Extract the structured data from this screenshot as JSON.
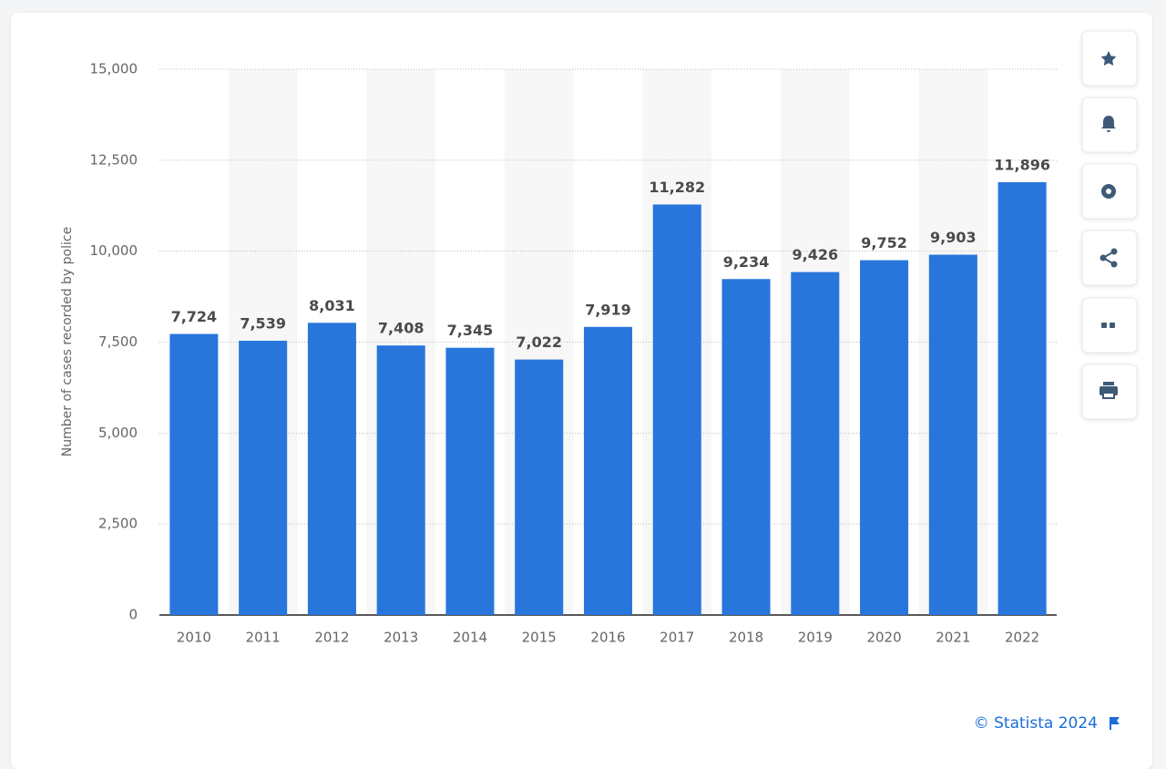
{
  "chart_data": {
    "type": "bar",
    "y_label": "Number of cases recorded by police",
    "categories": [
      "2010",
      "2011",
      "2012",
      "2013",
      "2014",
      "2015",
      "2016",
      "2017",
      "2018",
      "2019",
      "2020",
      "2021",
      "2022"
    ],
    "values": [
      7724,
      7539,
      8031,
      7408,
      7345,
      7022,
      7919,
      11282,
      9234,
      9426,
      9752,
      9903,
      11896
    ],
    "value_labels": [
      "7,724",
      "7,539",
      "8,031",
      "7,408",
      "7,345",
      "7,022",
      "7,919",
      "11,282",
      "9,234",
      "9,426",
      "9,752",
      "9,903",
      "11,896"
    ],
    "color": "#2876dc",
    "ylim": [
      0,
      15000
    ],
    "yticks": [
      {
        "value": 0,
        "label": "0"
      },
      {
        "value": 2500,
        "label": "2,500"
      },
      {
        "value": 5000,
        "label": "5,000"
      },
      {
        "value": 7500,
        "label": "7,500"
      },
      {
        "value": 10000,
        "label": "10,000"
      },
      {
        "value": 12500,
        "label": "12,500"
      },
      {
        "value": 15000,
        "label": "15,000"
      }
    ],
    "grid": true,
    "source": "© Statista 2024"
  }
}
